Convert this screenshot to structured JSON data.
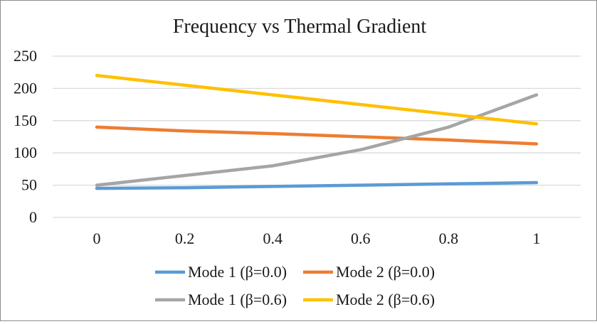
{
  "chart_data": {
    "type": "line",
    "title": "Frequency vs Thermal Gradient",
    "xlabel": "",
    "ylabel": "",
    "x": [
      0,
      0.2,
      0.4,
      0.6,
      0.8,
      1
    ],
    "x_tick_labels": [
      "0",
      "0.2",
      "0.4",
      "0.6",
      "0.8",
      "1"
    ],
    "y_tick_labels": [
      "0",
      "50",
      "100",
      "150",
      "200",
      "250"
    ],
    "ylim": [
      0,
      250
    ],
    "y_step": 50,
    "grid": true,
    "legend_position": "bottom",
    "series": [
      {
        "name": "Mode 1 (β=0.0)",
        "color": "#5b9bd5",
        "values": [
          45,
          46,
          48,
          50,
          52,
          54
        ]
      },
      {
        "name": "Mode 2 (β=0.0)",
        "color": "#ed7d31",
        "values": [
          140,
          134,
          130,
          125,
          120,
          114
        ]
      },
      {
        "name": "Mode 1 (β=0.6)",
        "color": "#a5a5a5",
        "values": [
          50,
          65,
          80,
          105,
          140,
          190
        ]
      },
      {
        "name": "Mode 2 (β=0.6)",
        "color": "#ffc000",
        "values": [
          220,
          205,
          190,
          175,
          160,
          145
        ]
      }
    ]
  }
}
